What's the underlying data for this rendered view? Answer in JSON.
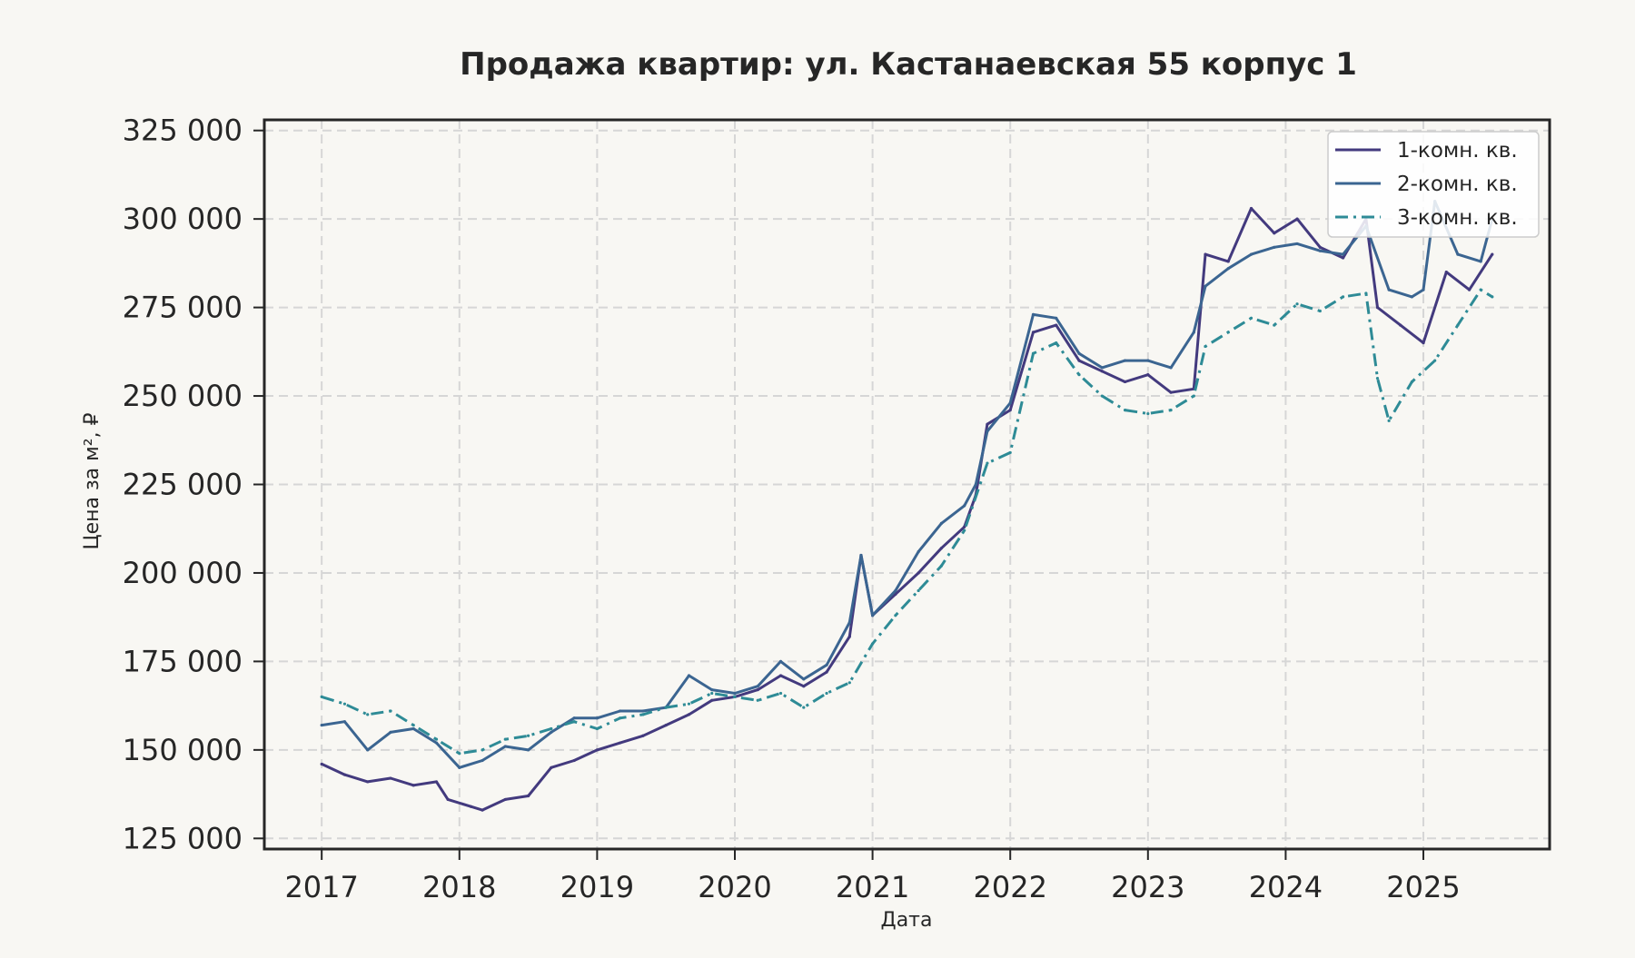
{
  "chart_data": {
    "type": "line",
    "title": "Продажа квартир: ул. Кастанаевская 55 корпус 1",
    "xlabel": "Дата",
    "ylabel": "Цена за м², ₽",
    "xlim": [
      "2016-08",
      "2025-12"
    ],
    "ylim": [
      122000,
      328000
    ],
    "x_ticks": [
      "2017",
      "2018",
      "2019",
      "2020",
      "2021",
      "2022",
      "2023",
      "2024",
      "2025"
    ],
    "y_ticks": [
      125000,
      150000,
      175000,
      200000,
      225000,
      250000,
      275000,
      300000,
      325000
    ],
    "y_tick_labels": [
      "125 000",
      "150 000",
      "175 000",
      "200 000",
      "225 000",
      "250 000",
      "275 000",
      "300 000",
      "325 000"
    ],
    "grid": true,
    "legend_position": "top-right",
    "series": [
      {
        "name": "1-комн. кв.",
        "color": "#433a7e",
        "dash": "solid",
        "points": [
          [
            "2017-01",
            146000
          ],
          [
            "2017-03",
            143000
          ],
          [
            "2017-05",
            141000
          ],
          [
            "2017-07",
            142000
          ],
          [
            "2017-09",
            140000
          ],
          [
            "2017-11",
            141000
          ],
          [
            "2017-12",
            136000
          ],
          [
            "2018-02",
            134000
          ],
          [
            "2018-03",
            133000
          ],
          [
            "2018-05",
            136000
          ],
          [
            "2018-07",
            137000
          ],
          [
            "2018-09",
            145000
          ],
          [
            "2018-11",
            147000
          ],
          [
            "2019-01",
            150000
          ],
          [
            "2019-03",
            152000
          ],
          [
            "2019-05",
            154000
          ],
          [
            "2019-07",
            157000
          ],
          [
            "2019-09",
            160000
          ],
          [
            "2019-11",
            164000
          ],
          [
            "2020-01",
            165000
          ],
          [
            "2020-03",
            167000
          ],
          [
            "2020-05",
            171000
          ],
          [
            "2020-07",
            168000
          ],
          [
            "2020-09",
            172000
          ],
          [
            "2020-11",
            182000
          ],
          [
            "2020-12",
            205000
          ],
          [
            "2021-01",
            188000
          ],
          [
            "2021-03",
            194000
          ],
          [
            "2021-05",
            200000
          ],
          [
            "2021-07",
            207000
          ],
          [
            "2021-09",
            213000
          ],
          [
            "2021-10",
            222000
          ],
          [
            "2021-11",
            242000
          ],
          [
            "2022-01",
            246000
          ],
          [
            "2022-03",
            268000
          ],
          [
            "2022-05",
            270000
          ],
          [
            "2022-07",
            260000
          ],
          [
            "2022-09",
            257000
          ],
          [
            "2022-11",
            254000
          ],
          [
            "2023-01",
            256000
          ],
          [
            "2023-03",
            251000
          ],
          [
            "2023-05",
            252000
          ],
          [
            "2023-06",
            290000
          ],
          [
            "2023-08",
            288000
          ],
          [
            "2023-10",
            303000
          ],
          [
            "2023-12",
            296000
          ],
          [
            "2024-02",
            300000
          ],
          [
            "2024-04",
            292000
          ],
          [
            "2024-06",
            289000
          ],
          [
            "2024-08",
            300000
          ],
          [
            "2024-09",
            275000
          ],
          [
            "2024-11",
            270000
          ],
          [
            "2025-01",
            265000
          ],
          [
            "2025-03",
            285000
          ],
          [
            "2025-05",
            280000
          ],
          [
            "2025-07",
            290000
          ]
        ]
      },
      {
        "name": "2-комн. кв.",
        "color": "#3b6591",
        "dash": "solid",
        "points": [
          [
            "2017-01",
            157000
          ],
          [
            "2017-03",
            158000
          ],
          [
            "2017-05",
            150000
          ],
          [
            "2017-07",
            155000
          ],
          [
            "2017-09",
            156000
          ],
          [
            "2017-11",
            152000
          ],
          [
            "2018-01",
            145000
          ],
          [
            "2018-03",
            147000
          ],
          [
            "2018-05",
            151000
          ],
          [
            "2018-07",
            150000
          ],
          [
            "2018-09",
            155000
          ],
          [
            "2018-11",
            159000
          ],
          [
            "2019-01",
            159000
          ],
          [
            "2019-03",
            161000
          ],
          [
            "2019-05",
            161000
          ],
          [
            "2019-07",
            162000
          ],
          [
            "2019-09",
            171000
          ],
          [
            "2019-11",
            167000
          ],
          [
            "2020-01",
            166000
          ],
          [
            "2020-03",
            168000
          ],
          [
            "2020-05",
            175000
          ],
          [
            "2020-07",
            170000
          ],
          [
            "2020-09",
            174000
          ],
          [
            "2020-11",
            186000
          ],
          [
            "2020-12",
            205000
          ],
          [
            "2021-01",
            188000
          ],
          [
            "2021-03",
            195000
          ],
          [
            "2021-05",
            206000
          ],
          [
            "2021-07",
            214000
          ],
          [
            "2021-09",
            219000
          ],
          [
            "2021-10",
            225000
          ],
          [
            "2021-11",
            240000
          ],
          [
            "2022-01",
            248000
          ],
          [
            "2022-03",
            273000
          ],
          [
            "2022-05",
            272000
          ],
          [
            "2022-07",
            262000
          ],
          [
            "2022-09",
            258000
          ],
          [
            "2022-11",
            260000
          ],
          [
            "2023-01",
            260000
          ],
          [
            "2023-03",
            258000
          ],
          [
            "2023-05",
            268000
          ],
          [
            "2023-06",
            281000
          ],
          [
            "2023-08",
            286000
          ],
          [
            "2023-10",
            290000
          ],
          [
            "2023-12",
            292000
          ],
          [
            "2024-02",
            293000
          ],
          [
            "2024-04",
            291000
          ],
          [
            "2024-06",
            290000
          ],
          [
            "2024-08",
            298000
          ],
          [
            "2024-10",
            280000
          ],
          [
            "2024-12",
            278000
          ],
          [
            "2025-01",
            280000
          ],
          [
            "2025-02",
            305000
          ],
          [
            "2025-04",
            290000
          ],
          [
            "2025-06",
            288000
          ],
          [
            "2025-07",
            300000
          ]
        ]
      },
      {
        "name": "3-комн. кв.",
        "color": "#2e8b96",
        "dash": "dashdot",
        "points": [
          [
            "2017-01",
            165000
          ],
          [
            "2017-03",
            163000
          ],
          [
            "2017-05",
            160000
          ],
          [
            "2017-07",
            161000
          ],
          [
            "2017-09",
            157000
          ],
          [
            "2017-11",
            153000
          ],
          [
            "2018-01",
            149000
          ],
          [
            "2018-03",
            150000
          ],
          [
            "2018-05",
            153000
          ],
          [
            "2018-07",
            154000
          ],
          [
            "2018-09",
            156000
          ],
          [
            "2018-11",
            158000
          ],
          [
            "2019-01",
            156000
          ],
          [
            "2019-03",
            159000
          ],
          [
            "2019-05",
            160000
          ],
          [
            "2019-07",
            162000
          ],
          [
            "2019-09",
            163000
          ],
          [
            "2019-11",
            166000
          ],
          [
            "2020-01",
            165000
          ],
          [
            "2020-03",
            164000
          ],
          [
            "2020-05",
            166000
          ],
          [
            "2020-07",
            162000
          ],
          [
            "2020-09",
            166000
          ],
          [
            "2020-11",
            169000
          ],
          [
            "2021-01",
            180000
          ],
          [
            "2021-03",
            188000
          ],
          [
            "2021-05",
            195000
          ],
          [
            "2021-07",
            202000
          ],
          [
            "2021-09",
            212000
          ],
          [
            "2021-11",
            231000
          ],
          [
            "2022-01",
            234000
          ],
          [
            "2022-03",
            262000
          ],
          [
            "2022-05",
            265000
          ],
          [
            "2022-07",
            256000
          ],
          [
            "2022-09",
            250000
          ],
          [
            "2022-11",
            246000
          ],
          [
            "2023-01",
            245000
          ],
          [
            "2023-03",
            246000
          ],
          [
            "2023-05",
            250000
          ],
          [
            "2023-06",
            264000
          ],
          [
            "2023-08",
            268000
          ],
          [
            "2023-10",
            272000
          ],
          [
            "2023-12",
            270000
          ],
          [
            "2024-02",
            276000
          ],
          [
            "2024-04",
            274000
          ],
          [
            "2024-06",
            278000
          ],
          [
            "2024-08",
            279000
          ],
          [
            "2024-09",
            255000
          ],
          [
            "2024-10",
            243000
          ],
          [
            "2024-12",
            254000
          ],
          [
            "2025-02",
            260000
          ],
          [
            "2025-04",
            270000
          ],
          [
            "2025-06",
            280000
          ],
          [
            "2025-07",
            278000
          ]
        ]
      }
    ]
  }
}
